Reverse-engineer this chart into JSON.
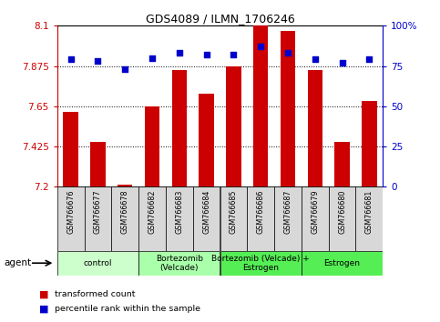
{
  "title": "GDS4089 / ILMN_1706246",
  "samples": [
    "GSM766676",
    "GSM766677",
    "GSM766678",
    "GSM766682",
    "GSM766683",
    "GSM766684",
    "GSM766685",
    "GSM766686",
    "GSM766687",
    "GSM766679",
    "GSM766680",
    "GSM766681"
  ],
  "bar_values": [
    7.62,
    7.45,
    7.21,
    7.65,
    7.85,
    7.72,
    7.875,
    8.1,
    8.07,
    7.85,
    7.45,
    7.68
  ],
  "dot_values": [
    79,
    78,
    73,
    80,
    83,
    82,
    82,
    87,
    83,
    79,
    77,
    79
  ],
  "y_min": 7.2,
  "y_max": 8.1,
  "y_ticks": [
    7.2,
    7.425,
    7.65,
    7.875,
    8.1
  ],
  "y2_ticks": [
    0,
    25,
    50,
    75,
    100
  ],
  "bar_color": "#cc0000",
  "dot_color": "#0000cc",
  "groups": [
    {
      "label": "control",
      "start": 0,
      "end": 3,
      "color": "#ccffcc"
    },
    {
      "label": "Bortezomib\n(Velcade)",
      "start": 3,
      "end": 6,
      "color": "#aaffaa"
    },
    {
      "label": "Bortezomib (Velcade) +\nEstrogen",
      "start": 6,
      "end": 9,
      "color": "#55ee55"
    },
    {
      "label": "Estrogen",
      "start": 9,
      "end": 12,
      "color": "#55ee55"
    }
  ],
  "agent_label": "agent",
  "legend_bar": "transformed count",
  "legend_dot": "percentile rank within the sample"
}
